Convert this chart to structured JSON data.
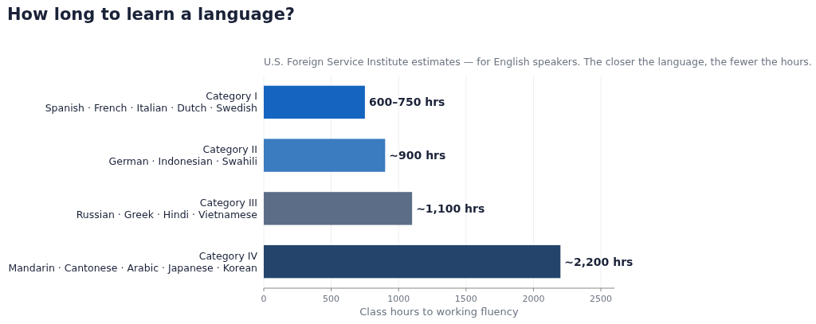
{
  "chart_data": {
    "type": "bar",
    "orientation": "horizontal",
    "title": "How long to learn a language?",
    "subtitle": "U.S. Foreign Service Institute estimates — for English speakers. The closer the language, the fewer the hours.",
    "xlabel": "Class hours to working fluency",
    "categories": [
      "Category I\nSpanish · French · Italian · Dutch · Swedish",
      "Category II\nGerman · Indonesian · Swahili",
      "Category III\nRussian · Greek · Hindi · Vietnamese",
      "Category IV\nMandarin · Cantonese · Arabic · Japanese · Korean"
    ],
    "values": [
      750,
      900,
      1100,
      2200
    ],
    "colors": [
      "#1565c0",
      "#3b7bc0",
      "#5c6e87",
      "#24446c"
    ],
    "value_labels": [
      "600–750 hrs",
      "~900 hrs",
      "~1,100 hrs",
      "~2,200 hrs"
    ],
    "xlim": [
      0,
      2600
    ],
    "xticks": [
      0,
      500,
      1000,
      1500,
      2000,
      2500
    ],
    "grid": "x"
  }
}
